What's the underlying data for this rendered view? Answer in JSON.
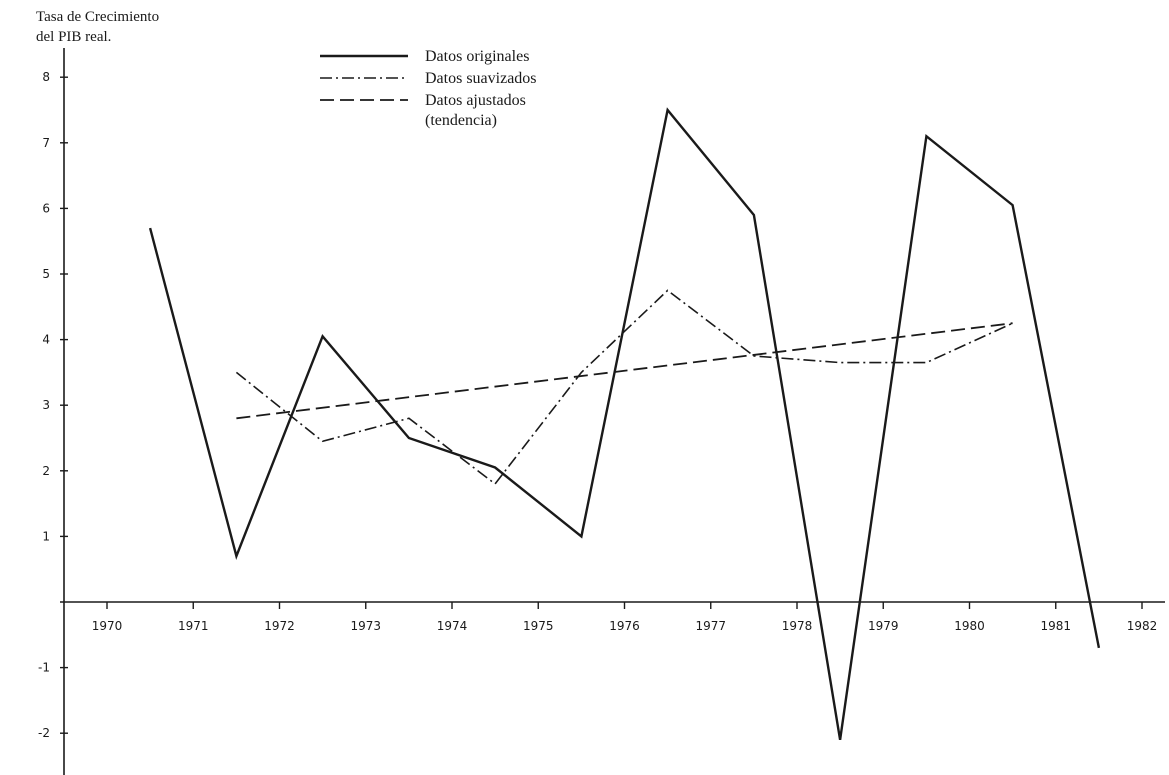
{
  "chart_data": {
    "type": "line",
    "ylabel_lines": [
      "Tasa de Crecimiento",
      "del PIB real."
    ],
    "x_ticks": [
      "1970",
      "1971",
      "1972",
      "1973",
      "1974",
      "1975",
      "1976",
      "1977",
      "1978",
      "1979",
      "1980",
      "1981",
      "1982"
    ],
    "y_ticks": [
      "8",
      "7",
      "6",
      "5",
      "4",
      "3",
      "2",
      "1",
      "-1",
      "-2"
    ],
    "y_tick_values": [
      8,
      7,
      6,
      5,
      4,
      3,
      2,
      1,
      -1,
      -2
    ],
    "xlim": [
      1969.8,
      1982.3
    ],
    "ylim": [
      -2.5,
      8.4
    ],
    "legend_position": "top-left",
    "series": [
      {
        "name": "Datos originales",
        "style": "solid",
        "x": [
          1970.5,
          1971.5,
          1972.5,
          1973.5,
          1974.5,
          1975.5,
          1976.5,
          1977.5,
          1978.5,
          1979.5,
          1980.5,
          1981.5
        ],
        "y": [
          5.7,
          0.7,
          4.05,
          2.5,
          2.05,
          1.0,
          7.5,
          5.9,
          -2.1,
          7.1,
          6.05,
          -0.7
        ]
      },
      {
        "name": "Datos suavizados",
        "style": "dash-dot",
        "x": [
          1971.5,
          1972.5,
          1973.5,
          1974.5,
          1975.5,
          1976.5,
          1977.5,
          1978.5,
          1979.5,
          1980.5
        ],
        "y": [
          3.5,
          2.45,
          2.8,
          1.8,
          3.5,
          4.75,
          3.75,
          3.65,
          3.65,
          4.25
        ]
      },
      {
        "name": "Datos ajustados",
        "name_line2": "(tendencia)",
        "style": "dashed",
        "x": [
          1971.5,
          1980.5
        ],
        "y": [
          2.8,
          4.25
        ]
      }
    ]
  }
}
